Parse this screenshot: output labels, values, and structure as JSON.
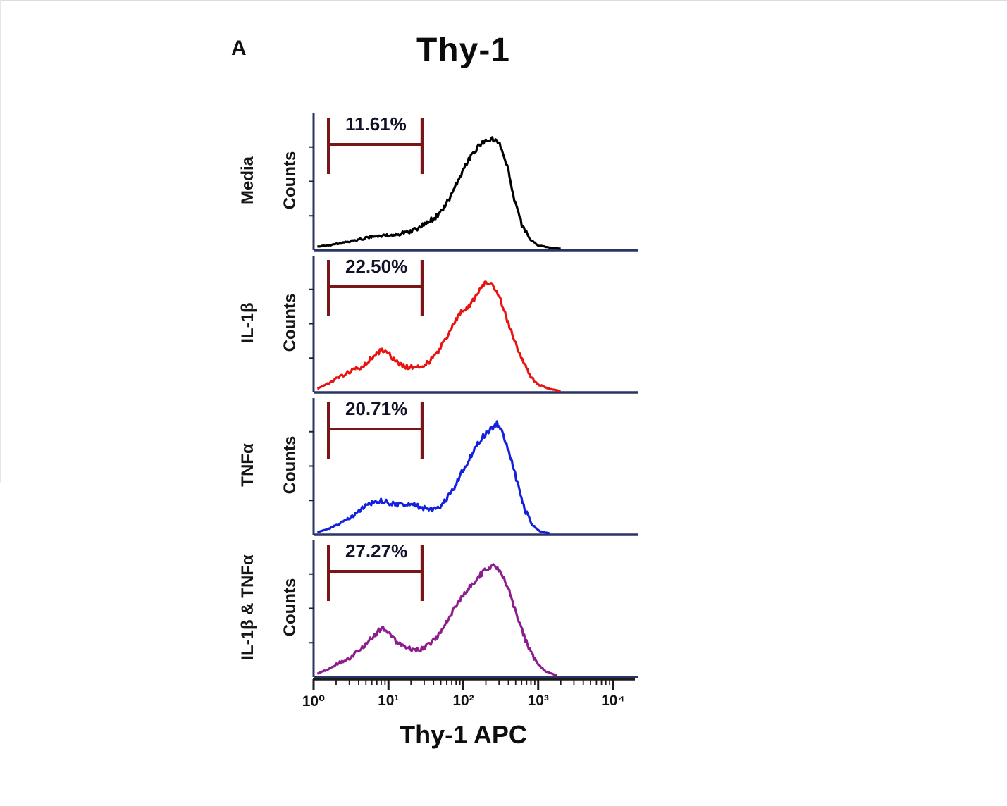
{
  "panel_label": "A",
  "title": "Thy-1",
  "xlabel": "Thy-1 APC",
  "ylabel": "Counts",
  "colors": {
    "axis": "#2a3566",
    "bottom_axis": "#1b1b1b",
    "gate": "#7a1518"
  },
  "chart_data": {
    "type": "line",
    "subtype": "flow-cytometry-histogram-overlay",
    "title": "Thy-1",
    "xlabel": "Thy-1 APC",
    "ylabel": "Counts",
    "x_scale": "log10",
    "x_range_log": [
      0,
      4
    ],
    "x_tick_labels": [
      "10⁰",
      "10¹",
      "10²",
      "10³",
      "10⁴"
    ],
    "grid": false,
    "legend_position": "left-rotated-row-labels",
    "gate": {
      "x_start_log": 0.2,
      "x_end_log": 1.45,
      "description": "low Thy-1 gated region"
    },
    "series": [
      {
        "name": "Media",
        "color": "#000000",
        "gate_percent": "11.61%",
        "points": [
          [
            0.05,
            0.02
          ],
          [
            0.2,
            0.03
          ],
          [
            0.35,
            0.05
          ],
          [
            0.5,
            0.07
          ],
          [
            0.65,
            0.09
          ],
          [
            0.8,
            0.11
          ],
          [
            0.95,
            0.12
          ],
          [
            1.1,
            0.13
          ],
          [
            1.25,
            0.15
          ],
          [
            1.4,
            0.19
          ],
          [
            1.5,
            0.24
          ],
          [
            1.6,
            0.27
          ],
          [
            1.7,
            0.33
          ],
          [
            1.8,
            0.44
          ],
          [
            1.9,
            0.58
          ],
          [
            2.0,
            0.72
          ],
          [
            2.1,
            0.84
          ],
          [
            2.2,
            0.93
          ],
          [
            2.3,
            0.98
          ],
          [
            2.4,
            1.0
          ],
          [
            2.5,
            0.93
          ],
          [
            2.6,
            0.72
          ],
          [
            2.68,
            0.45
          ],
          [
            2.78,
            0.22
          ],
          [
            2.9,
            0.08
          ],
          [
            3.0,
            0.03
          ],
          [
            3.15,
            0.01
          ],
          [
            3.3,
            0.0
          ]
        ]
      },
      {
        "name": "IL-1β",
        "color": "#e81310",
        "gate_percent": "22.50%",
        "points": [
          [
            0.05,
            0.02
          ],
          [
            0.2,
            0.07
          ],
          [
            0.35,
            0.13
          ],
          [
            0.5,
            0.18
          ],
          [
            0.6,
            0.21
          ],
          [
            0.7,
            0.25
          ],
          [
            0.8,
            0.32
          ],
          [
            0.9,
            0.37
          ],
          [
            1.0,
            0.34
          ],
          [
            1.1,
            0.27
          ],
          [
            1.2,
            0.23
          ],
          [
            1.35,
            0.21
          ],
          [
            1.5,
            0.24
          ],
          [
            1.65,
            0.34
          ],
          [
            1.8,
            0.52
          ],
          [
            1.9,
            0.65
          ],
          [
            2.0,
            0.74
          ],
          [
            2.1,
            0.79
          ],
          [
            2.2,
            0.9
          ],
          [
            2.3,
            1.0
          ],
          [
            2.4,
            0.96
          ],
          [
            2.5,
            0.82
          ],
          [
            2.6,
            0.62
          ],
          [
            2.7,
            0.43
          ],
          [
            2.8,
            0.26
          ],
          [
            2.9,
            0.13
          ],
          [
            3.0,
            0.06
          ],
          [
            3.15,
            0.02
          ],
          [
            3.3,
            0.0
          ]
        ]
      },
      {
        "name": "TNFα",
        "color": "#1420dd",
        "gate_percent": "20.71%",
        "points": [
          [
            0.05,
            0.01
          ],
          [
            0.2,
            0.04
          ],
          [
            0.35,
            0.09
          ],
          [
            0.5,
            0.15
          ],
          [
            0.65,
            0.23
          ],
          [
            0.8,
            0.28
          ],
          [
            0.9,
            0.3
          ],
          [
            1.0,
            0.28
          ],
          [
            1.15,
            0.26
          ],
          [
            1.3,
            0.27
          ],
          [
            1.45,
            0.23
          ],
          [
            1.6,
            0.21
          ],
          [
            1.72,
            0.26
          ],
          [
            1.85,
            0.38
          ],
          [
            1.95,
            0.52
          ],
          [
            2.05,
            0.64
          ],
          [
            2.15,
            0.77
          ],
          [
            2.25,
            0.87
          ],
          [
            2.35,
            0.94
          ],
          [
            2.45,
            1.0
          ],
          [
            2.52,
            0.93
          ],
          [
            2.62,
            0.72
          ],
          [
            2.72,
            0.46
          ],
          [
            2.82,
            0.22
          ],
          [
            2.92,
            0.08
          ],
          [
            3.02,
            0.02
          ],
          [
            3.15,
            0.0
          ]
        ]
      },
      {
        "name": "IL-1β & TNFα",
        "color": "#8d1c8c",
        "gate_percent": "27.27%",
        "points": [
          [
            0.05,
            0.02
          ],
          [
            0.2,
            0.06
          ],
          [
            0.35,
            0.12
          ],
          [
            0.5,
            0.17
          ],
          [
            0.65,
            0.26
          ],
          [
            0.8,
            0.36
          ],
          [
            0.9,
            0.43
          ],
          [
            1.0,
            0.4
          ],
          [
            1.1,
            0.31
          ],
          [
            1.25,
            0.25
          ],
          [
            1.4,
            0.23
          ],
          [
            1.55,
            0.28
          ],
          [
            1.7,
            0.39
          ],
          [
            1.8,
            0.51
          ],
          [
            1.9,
            0.63
          ],
          [
            2.0,
            0.74
          ],
          [
            2.1,
            0.82
          ],
          [
            2.2,
            0.9
          ],
          [
            2.3,
            0.96
          ],
          [
            2.4,
            1.0
          ],
          [
            2.5,
            0.95
          ],
          [
            2.6,
            0.8
          ],
          [
            2.7,
            0.58
          ],
          [
            2.8,
            0.38
          ],
          [
            2.9,
            0.21
          ],
          [
            3.0,
            0.1
          ],
          [
            3.1,
            0.04
          ],
          [
            3.25,
            0.0
          ]
        ]
      }
    ]
  }
}
